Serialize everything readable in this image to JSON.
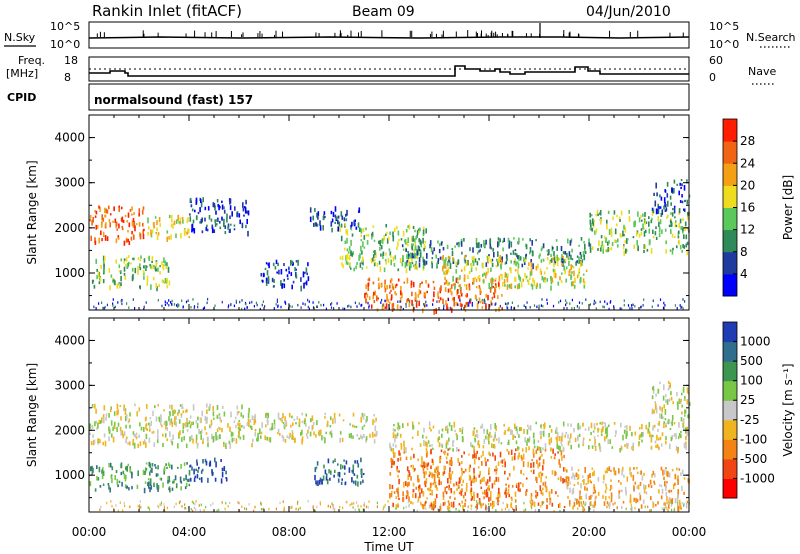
{
  "header": {
    "station": "Rankin Inlet (fitACF)",
    "beam": "Beam 09",
    "date": "04/Jun/2010"
  },
  "top_panels": {
    "nsky_label": "N.Sky",
    "nsearch_label": "N.Search",
    "nsky_ticks": [
      "10^5",
      "10^0"
    ],
    "nsearch_ticks": [
      "10^5",
      "10^0"
    ],
    "freq_label_1": "Freq.",
    "freq_label_2": "[MHz]",
    "freq_ticks": [
      "18",
      "8"
    ],
    "nave_label": "Nave",
    "nave_ticks": [
      "60",
      "0"
    ],
    "cpid_label": "CPID",
    "cpid_text": "normalsound (fast) 157"
  },
  "chart_data": [
    {
      "type": "heatmap",
      "name": "power",
      "ylabel": "Slant Range [km]",
      "xlabel": "Time UT",
      "x_ticks": [
        "00:00",
        "04:00",
        "08:00",
        "12:00",
        "16:00",
        "20:00",
        "00:00"
      ],
      "y_ticks": [
        "1000",
        "2000",
        "3000",
        "4000"
      ],
      "xlim_hours": [
        0,
        24
      ],
      "ylim_km": [
        180,
        4500
      ],
      "colorbar": {
        "label": "Power [dB]",
        "ticks": [
          "4",
          "8",
          "12",
          "16",
          "20",
          "24",
          "28"
        ],
        "colors": [
          "#0000ff",
          "#1e3ca0",
          "#2f8a5a",
          "#5ac85a",
          "#f0dc1e",
          "#f5a014",
          "#f06414",
          "#ff1e00"
        ]
      },
      "echo_regions_hours_km": [
        {
          "t": [
            0.0,
            2.2
          ],
          "r": [
            1700,
            2500
          ],
          "level": 6
        },
        {
          "t": [
            2.2,
            4.0
          ],
          "r": [
            1800,
            2300
          ],
          "level": 4
        },
        {
          "t": [
            4.0,
            6.4
          ],
          "r": [
            1900,
            2700
          ],
          "level": 1
        },
        {
          "t": [
            0.0,
            3.2
          ],
          "r": [
            700,
            1400
          ],
          "level": 3
        },
        {
          "t": [
            6.8,
            8.8
          ],
          "r": [
            700,
            1300
          ],
          "level": 1
        },
        {
          "t": [
            8.8,
            10.8
          ],
          "r": [
            2000,
            2500
          ],
          "level": 1
        },
        {
          "t": [
            10.0,
            13.5
          ],
          "r": [
            1100,
            2100
          ],
          "level": 3
        },
        {
          "t": [
            12.5,
            20.0
          ],
          "r": [
            1200,
            1800
          ],
          "level": 2
        },
        {
          "t": [
            11.0,
            16.5
          ],
          "r": [
            200,
            900
          ],
          "level": 6
        },
        {
          "t": [
            14.0,
            20.0
          ],
          "r": [
            700,
            1400
          ],
          "level": 4
        },
        {
          "t": [
            20.0,
            24.0
          ],
          "r": [
            1500,
            2400
          ],
          "level": 3
        },
        {
          "t": [
            22.5,
            24.0
          ],
          "r": [
            2400,
            3100
          ],
          "level": 1
        }
      ]
    },
    {
      "type": "heatmap",
      "name": "velocity",
      "ylabel": "Slant Range [km]",
      "xlabel": "Time UT",
      "x_ticks": [
        "00:00",
        "04:00",
        "08:00",
        "12:00",
        "16:00",
        "20:00",
        "00:00"
      ],
      "y_ticks": [
        "1000",
        "2000",
        "3000",
        "4000"
      ],
      "xlim_hours": [
        0,
        24
      ],
      "ylim_km": [
        180,
        4500
      ],
      "colorbar": {
        "label": "Velocity [m s⁻¹]",
        "ticks": [
          "1000",
          "500",
          "100",
          "25",
          "-25",
          "-100",
          "-500",
          "-1000"
        ],
        "colors": [
          "#1e3cb4",
          "#2f6e8c",
          "#3c9650",
          "#78c846",
          "#c8c8c8",
          "#f0b41e",
          "#f58214",
          "#f04614",
          "#ff0000"
        ]
      },
      "echo_regions_hours_km": [
        {
          "t": [
            0.0,
            6.5
          ],
          "r": [
            1700,
            2600
          ],
          "level": 4
        },
        {
          "t": [
            6.5,
            11.5
          ],
          "r": [
            1800,
            2400
          ],
          "level": 4
        },
        {
          "t": [
            0.0,
            4.0
          ],
          "r": [
            700,
            1300
          ],
          "level": 2
        },
        {
          "t": [
            4.0,
            5.5
          ],
          "r": [
            900,
            1400
          ],
          "level": 0
        },
        {
          "t": [
            9.0,
            11.0
          ],
          "r": [
            800,
            1400
          ],
          "level": 1
        },
        {
          "t": [
            12.0,
            19.0
          ],
          "r": [
            300,
            1600
          ],
          "level": 6
        },
        {
          "t": [
            12.0,
            24.0
          ],
          "r": [
            1600,
            2200
          ],
          "level": 4
        },
        {
          "t": [
            19.0,
            24.0
          ],
          "r": [
            300,
            1200
          ],
          "level": 5
        },
        {
          "t": [
            22.5,
            24.0
          ],
          "r": [
            2200,
            3100
          ],
          "level": 4
        }
      ]
    }
  ]
}
